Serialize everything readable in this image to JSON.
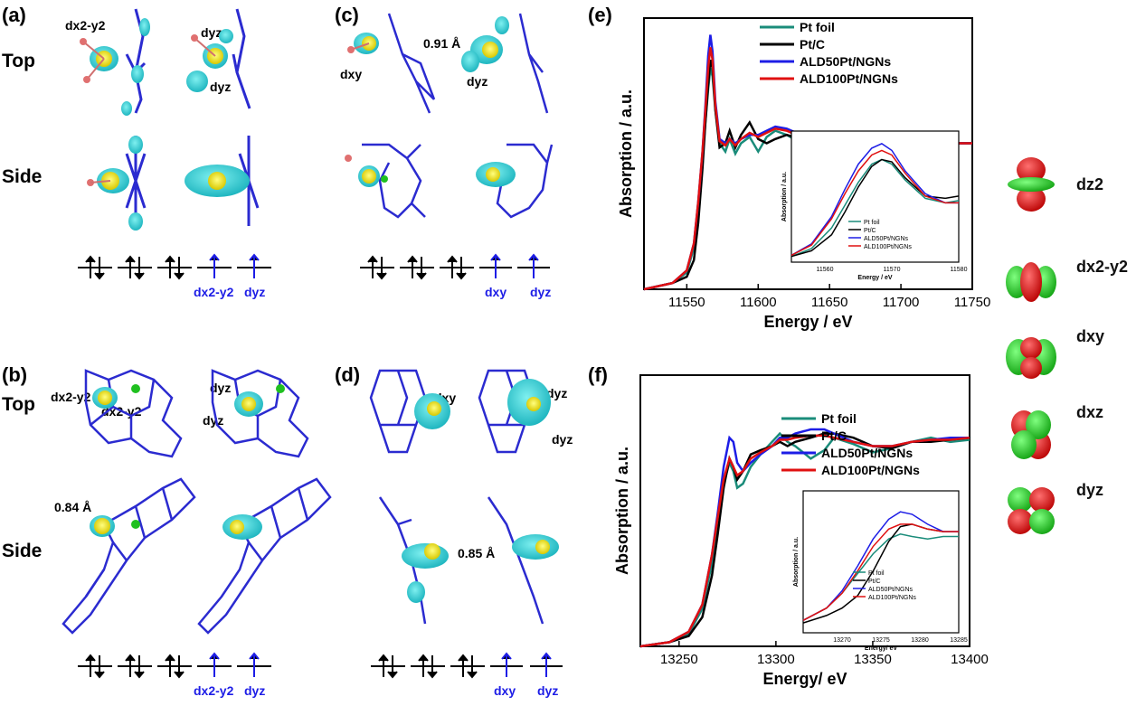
{
  "panels": {
    "a": {
      "label": "(a)",
      "row_top": "Top",
      "row_side": "Side",
      "annotations": [
        "dx2-y2",
        "dyz",
        "dyz"
      ],
      "orbital_labels": [
        "dx2-y2",
        "dyz"
      ]
    },
    "b": {
      "label": "(b)",
      "row_top": "Top",
      "row_side": "Side",
      "annotations": [
        "dx2-y2",
        "dx2-y2",
        "dyz",
        "dyz",
        "0.84 Å"
      ],
      "orbital_labels": [
        "dx2-y2",
        "dyz"
      ]
    },
    "c": {
      "label": "(c)",
      "annotations": [
        "dxy",
        "0.91 Å",
        "dyz"
      ],
      "orbital_labels": [
        "dxy",
        "dyz"
      ]
    },
    "d": {
      "label": "(d)",
      "annotations": [
        "dxy",
        "dyz",
        "dyz",
        "0.85 Å"
      ],
      "orbital_labels": [
        "dxy",
        "dyz"
      ]
    },
    "e": {
      "label": "(e)"
    },
    "f": {
      "label": "(f)"
    }
  },
  "orbital_legend": [
    "dz2",
    "dx2-y2",
    "dxy",
    "dxz",
    "dyz"
  ],
  "colors": {
    "PtFoil": "#1a8c7a",
    "PtC": "#000000",
    "ALD50": "#1d1de6",
    "ALD100": "#e01010",
    "structure": "#2b2bd0",
    "lobe": "#2fd0d0",
    "pt": "#e8e820"
  },
  "chart_data": [
    {
      "type": "line",
      "panel": "(e)",
      "xlabel": "Energy / eV",
      "ylabel": "Absorption / a.u.",
      "xlim": [
        11520,
        11750
      ],
      "xticks": [
        11550,
        11600,
        11650,
        11700,
        11750
      ],
      "legend": [
        "Pt foil",
        "Pt/C",
        "ALD50Pt/NGNs",
        "ALD100Pt/NGNs"
      ],
      "legend_position": "top-center",
      "x": [
        11520,
        11540,
        11550,
        11555,
        11558,
        11561,
        11563,
        11565,
        11566.5,
        11568,
        11570,
        11573,
        11577,
        11580,
        11584,
        11588,
        11594,
        11600,
        11606,
        11612,
        11620,
        11630,
        11640,
        11650,
        11660,
        11670,
        11680,
        11690,
        11700,
        11710,
        11720,
        11730,
        11740,
        11750
      ],
      "series": [
        {
          "name": "Pt foil",
          "values": [
            0.0,
            0.03,
            0.08,
            0.2,
            0.38,
            0.62,
            0.8,
            0.96,
            1.06,
            1.02,
            0.86,
            0.7,
            0.66,
            0.72,
            0.65,
            0.7,
            0.73,
            0.66,
            0.73,
            0.76,
            0.74,
            0.7,
            0.68,
            0.71,
            0.72,
            0.7,
            0.68,
            0.7,
            0.71,
            0.69,
            0.7,
            0.7,
            0.7,
            0.7
          ]
        },
        {
          "name": "Pt/C",
          "values": [
            0.0,
            0.03,
            0.06,
            0.14,
            0.32,
            0.58,
            0.8,
            0.98,
            1.1,
            1.06,
            0.86,
            0.68,
            0.7,
            0.76,
            0.68,
            0.74,
            0.8,
            0.72,
            0.7,
            0.72,
            0.74,
            0.72,
            0.7,
            0.69,
            0.71,
            0.7,
            0.7,
            0.7,
            0.7,
            0.69,
            0.7,
            0.7,
            0.7,
            0.7
          ]
        },
        {
          "name": "ALD50Pt/NGNs",
          "values": [
            0.0,
            0.03,
            0.09,
            0.22,
            0.42,
            0.66,
            0.88,
            1.12,
            1.22,
            1.14,
            0.9,
            0.72,
            0.7,
            0.72,
            0.7,
            0.72,
            0.74,
            0.74,
            0.76,
            0.78,
            0.77,
            0.74,
            0.72,
            0.72,
            0.71,
            0.7,
            0.7,
            0.7,
            0.7,
            0.7,
            0.7,
            0.7,
            0.7,
            0.7
          ]
        },
        {
          "name": "ALD100Pt/NGNs",
          "values": [
            0.0,
            0.03,
            0.09,
            0.22,
            0.42,
            0.66,
            0.86,
            1.06,
            1.16,
            1.1,
            0.88,
            0.71,
            0.69,
            0.72,
            0.69,
            0.72,
            0.75,
            0.73,
            0.75,
            0.77,
            0.76,
            0.73,
            0.71,
            0.71,
            0.71,
            0.7,
            0.7,
            0.7,
            0.7,
            0.7,
            0.7,
            0.7,
            0.7,
            0.7
          ]
        }
      ],
      "inset": {
        "xlabel": "Energy / eV",
        "ylabel": "Absorption / a.u.",
        "xlim": [
          11555,
          11580
        ],
        "xticks": [
          11560,
          11570,
          11580
        ],
        "x": [
          11555,
          11558,
          11561,
          11563,
          11565,
          11567,
          11568.5,
          11570,
          11572,
          11575,
          11578,
          11580
        ],
        "series": [
          {
            "name": "Pt foil",
            "values": [
              0.05,
              0.12,
              0.3,
              0.5,
              0.7,
              0.86,
              0.9,
              0.86,
              0.72,
              0.56,
              0.52,
              0.54
            ]
          },
          {
            "name": "Pt/C",
            "values": [
              0.05,
              0.1,
              0.24,
              0.44,
              0.66,
              0.84,
              0.9,
              0.88,
              0.74,
              0.58,
              0.56,
              0.58
            ]
          },
          {
            "name": "ALD50Pt/NGNs",
            "values": [
              0.06,
              0.16,
              0.4,
              0.64,
              0.86,
              1.0,
              1.04,
              0.98,
              0.8,
              0.6,
              0.52,
              0.52
            ]
          },
          {
            "name": "ALD100Pt/NGNs",
            "values": [
              0.06,
              0.15,
              0.38,
              0.6,
              0.8,
              0.94,
              0.98,
              0.94,
              0.78,
              0.58,
              0.52,
              0.52
            ]
          }
        ]
      }
    },
    {
      "type": "line",
      "panel": "(f)",
      "xlabel": "Energy/ eV",
      "ylabel": "Absorption / a.u.",
      "xlim": [
        13230,
        13400
      ],
      "xticks": [
        13250,
        13300,
        13350,
        13400
      ],
      "legend": [
        "Pt foil",
        "Pt/C",
        "ALD50Pt/NGNs",
        "ALD100Pt/NGNs"
      ],
      "legend_position": "center-right",
      "x": [
        13230,
        13245,
        13255,
        13262,
        13267,
        13270,
        13273,
        13276,
        13278,
        13280,
        13283,
        13287,
        13292,
        13298,
        13302,
        13306,
        13310,
        13318,
        13325,
        13330,
        13340,
        13350,
        13360,
        13370,
        13380,
        13390,
        13400
      ],
      "series": [
        {
          "name": "Pt foil",
          "values": [
            0.0,
            0.02,
            0.06,
            0.18,
            0.4,
            0.58,
            0.78,
            0.88,
            0.84,
            0.76,
            0.78,
            0.86,
            0.92,
            0.98,
            1.02,
            0.98,
            0.96,
            0.9,
            0.94,
            1.0,
            0.97,
            0.93,
            0.95,
            0.98,
            1.0,
            0.98,
            0.99
          ]
        },
        {
          "name": "Pt/C",
          "values": [
            0.0,
            0.02,
            0.05,
            0.14,
            0.34,
            0.54,
            0.76,
            0.9,
            0.86,
            0.8,
            0.84,
            0.92,
            0.94,
            0.96,
            0.98,
            0.96,
            0.98,
            1.0,
            1.02,
            1.02,
            1.0,
            0.96,
            0.95,
            0.98,
            0.98,
            0.99,
            1.0
          ]
        },
        {
          "name": "ALD50Pt/NGNs",
          "values": [
            0.0,
            0.02,
            0.07,
            0.2,
            0.44,
            0.64,
            0.86,
            1.0,
            0.98,
            0.88,
            0.84,
            0.88,
            0.92,
            0.96,
            1.0,
            1.0,
            1.02,
            1.04,
            1.04,
            1.02,
            0.98,
            0.96,
            0.96,
            0.98,
            0.99,
            1.0,
            1.0
          ]
        },
        {
          "name": "ALD100Pt/NGNs",
          "values": [
            0.0,
            0.02,
            0.07,
            0.2,
            0.44,
            0.62,
            0.8,
            0.9,
            0.86,
            0.82,
            0.84,
            0.9,
            0.93,
            0.96,
            0.99,
            0.99,
            1.0,
            1.01,
            1.01,
            1.0,
            0.98,
            0.96,
            0.96,
            0.98,
            0.99,
            0.99,
            1.0
          ]
        }
      ],
      "inset": {
        "xlabel": "Energy/ eV",
        "ylabel": "Absorption / a.u.",
        "xlim": [
          13265,
          13285
        ],
        "xticks": [
          13270,
          13275,
          13280,
          13285
        ],
        "x": [
          13265,
          13268,
          13270,
          13272,
          13274,
          13276,
          13277.5,
          13279,
          13281,
          13283,
          13285
        ],
        "series": [
          {
            "name": "Pt foil",
            "values": [
              0.1,
              0.2,
              0.32,
              0.48,
              0.64,
              0.76,
              0.8,
              0.78,
              0.76,
              0.78,
              0.78
            ]
          },
          {
            "name": "Pt/C",
            "values": [
              0.08,
              0.14,
              0.2,
              0.3,
              0.5,
              0.74,
              0.86,
              0.88,
              0.84,
              0.82,
              0.82
            ]
          },
          {
            "name": "ALD50Pt/NGNs",
            "values": [
              0.1,
              0.2,
              0.34,
              0.54,
              0.76,
              0.92,
              0.98,
              0.96,
              0.88,
              0.82,
              0.82
            ]
          },
          {
            "name": "ALD100Pt/NGNs",
            "values": [
              0.1,
              0.2,
              0.32,
              0.5,
              0.7,
              0.84,
              0.88,
              0.88,
              0.84,
              0.82,
              0.82
            ]
          }
        ]
      }
    }
  ]
}
